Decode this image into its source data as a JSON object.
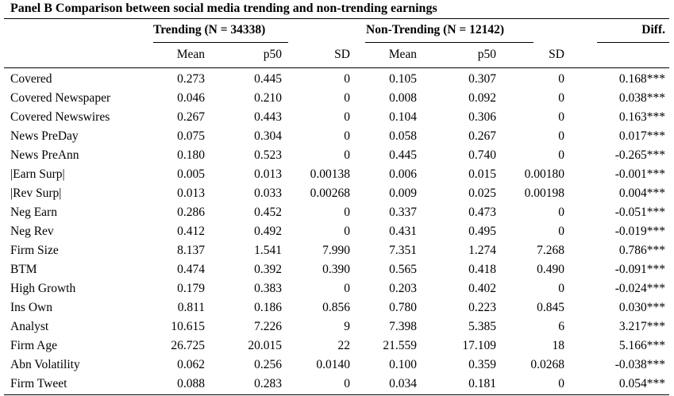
{
  "title": "Panel B Comparison between social media trending and non-trending earnings",
  "groups": {
    "trending": "Trending (N = 34338)",
    "non_trending": "Non-Trending (N = 12142)",
    "diff": "Diff."
  },
  "column_headers": {
    "t_mean": "Mean",
    "t_p50": "p50",
    "t_sd": "SD",
    "n_mean": "Mean",
    "n_p50": "p50",
    "n_sd": "SD"
  },
  "rows": [
    {
      "label": "Covered",
      "t_mean": "0.273",
      "t_p50": "0.445",
      "t_sd": "0",
      "n_mean": "0.105",
      "n_p50": "0.307",
      "n_sd": "0",
      "diff": "0.168***"
    },
    {
      "label": "Covered Newspaper",
      "t_mean": "0.046",
      "t_p50": "0.210",
      "t_sd": "0",
      "n_mean": "0.008",
      "n_p50": "0.092",
      "n_sd": "0",
      "diff": "0.038***"
    },
    {
      "label": "Covered Newswires",
      "t_mean": "0.267",
      "t_p50": "0.443",
      "t_sd": "0",
      "n_mean": "0.104",
      "n_p50": "0.306",
      "n_sd": "0",
      "diff": "0.163***"
    },
    {
      "label": "News PreDay",
      "t_mean": "0.075",
      "t_p50": "0.304",
      "t_sd": "0",
      "n_mean": "0.058",
      "n_p50": "0.267",
      "n_sd": "0",
      "diff": "0.017***"
    },
    {
      "label": "News PreAnn",
      "t_mean": "0.180",
      "t_p50": "0.523",
      "t_sd": "0",
      "n_mean": "0.445",
      "n_p50": "0.740",
      "n_sd": "0",
      "diff": "-0.265***"
    },
    {
      "label": "|Earn Surp|",
      "t_mean": "0.005",
      "t_p50": "0.013",
      "t_sd": "0.00138",
      "n_mean": "0.006",
      "n_p50": "0.015",
      "n_sd": "0.00180",
      "diff": "-0.001***"
    },
    {
      "label": "|Rev Surp|",
      "t_mean": "0.013",
      "t_p50": "0.033",
      "t_sd": "0.00268",
      "n_mean": "0.009",
      "n_p50": "0.025",
      "n_sd": "0.00198",
      "diff": "0.004***"
    },
    {
      "label": "Neg Earn",
      "t_mean": "0.286",
      "t_p50": "0.452",
      "t_sd": "0",
      "n_mean": "0.337",
      "n_p50": "0.473",
      "n_sd": "0",
      "diff": "-0.051***"
    },
    {
      "label": "Neg Rev",
      "t_mean": "0.412",
      "t_p50": "0.492",
      "t_sd": "0",
      "n_mean": "0.431",
      "n_p50": "0.495",
      "n_sd": "0",
      "diff": "-0.019***"
    },
    {
      "label": "Firm Size",
      "t_mean": "8.137",
      "t_p50": "1.541",
      "t_sd": "7.990",
      "n_mean": "7.351",
      "n_p50": "1.274",
      "n_sd": "7.268",
      "diff": "0.786***"
    },
    {
      "label": "BTM",
      "t_mean": "0.474",
      "t_p50": "0.392",
      "t_sd": "0.390",
      "n_mean": "0.565",
      "n_p50": "0.418",
      "n_sd": "0.490",
      "diff": "-0.091***"
    },
    {
      "label": "High Growth",
      "t_mean": "0.179",
      "t_p50": "0.383",
      "t_sd": "0",
      "n_mean": "0.203",
      "n_p50": "0.402",
      "n_sd": "0",
      "diff": "-0.024***"
    },
    {
      "label": "Ins Own",
      "t_mean": "0.811",
      "t_p50": "0.186",
      "t_sd": "0.856",
      "n_mean": "0.780",
      "n_p50": "0.223",
      "n_sd": "0.845",
      "diff": "0.030***"
    },
    {
      "label": "Analyst",
      "t_mean": "10.615",
      "t_p50": "7.226",
      "t_sd": "9",
      "n_mean": "7.398",
      "n_p50": "5.385",
      "n_sd": "6",
      "diff": "3.217***"
    },
    {
      "label": "Firm Age",
      "t_mean": "26.725",
      "t_p50": "20.015",
      "t_sd": "22",
      "n_mean": "21.559",
      "n_p50": "17.109",
      "n_sd": "18",
      "diff": "5.166***"
    },
    {
      "label": "Abn Volatility",
      "t_mean": "0.062",
      "t_p50": "0.256",
      "t_sd": "0.0140",
      "n_mean": "0.100",
      "n_p50": "0.359",
      "n_sd": "0.0268",
      "diff": "-0.038***"
    },
    {
      "label": "Firm Tweet",
      "t_mean": "0.088",
      "t_p50": "0.283",
      "t_sd": "0",
      "n_mean": "0.034",
      "n_p50": "0.181",
      "n_sd": "0",
      "diff": "0.054***"
    }
  ]
}
